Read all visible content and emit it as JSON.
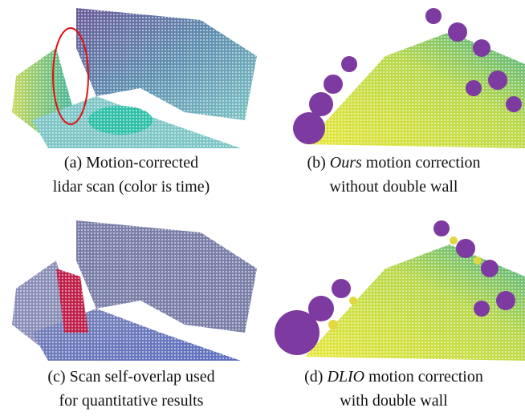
{
  "panels": [
    {
      "label": "(a)",
      "caption": [
        "Motion-corrected",
        "lidar scan (color is time)"
      ]
    },
    {
      "label": "(b)",
      "emphasis": "Ours",
      "caption": [
        "motion correction",
        "without double wall"
      ]
    },
    {
      "label": "(c)",
      "caption": [
        "Scan self-overlap used",
        "for quantitative results"
      ]
    },
    {
      "label": "(d)",
      "emphasis": "DLIO",
      "caption": [
        "motion correction",
        "with double wall"
      ]
    }
  ]
}
